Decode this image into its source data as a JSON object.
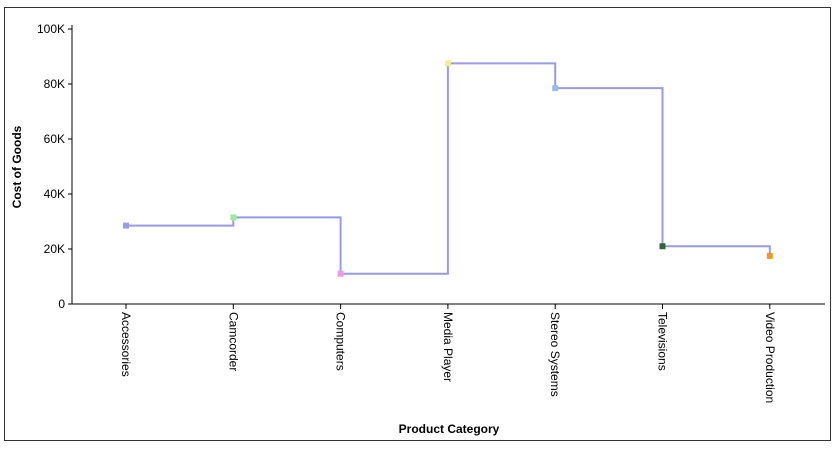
{
  "chart_data": {
    "type": "line",
    "step": true,
    "xlabel": "Product Category",
    "ylabel": "Cost of Goods",
    "ylim": [
      0,
      100000
    ],
    "yticks": [
      0,
      20000,
      40000,
      60000,
      80000,
      100000
    ],
    "ytick_labels": [
      "0",
      "20K",
      "40K",
      "60K",
      "80K",
      "100K"
    ],
    "categories": [
      "Accessories",
      "Camcorder",
      "Computers",
      "Media Player",
      "Stereo Systems",
      "Televisions",
      "Video Production"
    ],
    "series": [
      {
        "values": [
          28500,
          31500,
          11000,
          87500,
          78500,
          21000,
          17500
        ],
        "line_color": "#9999ee",
        "marker_colors": [
          "#9999ee",
          "#99ee99",
          "#ee99ee",
          "#eeee99",
          "#99bbee",
          "#336633",
          "#ee9922"
        ]
      }
    ],
    "grid": false
  }
}
